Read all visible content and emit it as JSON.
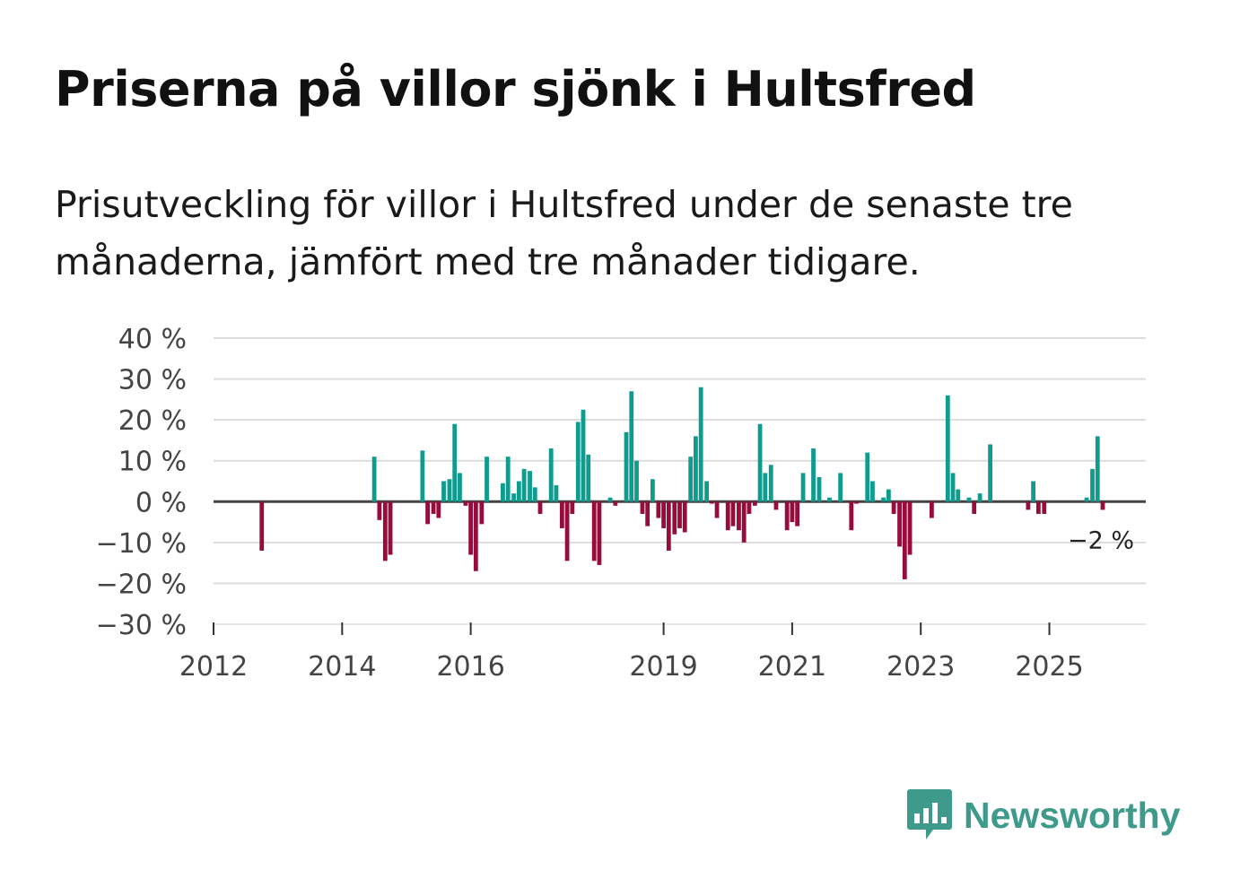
{
  "title": "Priserna på villor sjönk i Hultsfred",
  "subtitle": "Prisutveckling för villor i Hultsfred under de senaste tre månaderna, jämfört med tre månader tidigare.",
  "brand": "Newsworthy",
  "colors": {
    "positive": "#0f9b8e",
    "negative": "#960c3a",
    "brand": "#3e9a8b"
  },
  "chart_data": {
    "type": "bar",
    "title": "Priserna på villor sjönk i Hultsfred",
    "xlabel": "",
    "ylabel": "",
    "ylim": [
      -30,
      40
    ],
    "xlim": [
      2012,
      2026.5
    ],
    "yticks": [
      {
        "value": 40,
        "label": "40 %"
      },
      {
        "value": 30,
        "label": "30 %"
      },
      {
        "value": 20,
        "label": "20 %"
      },
      {
        "value": 10,
        "label": "10 %"
      },
      {
        "value": 0,
        "label": "0 %"
      },
      {
        "value": -10,
        "label": "−10 %"
      },
      {
        "value": -20,
        "label": "−20 %"
      },
      {
        "value": -30,
        "label": "−30 %"
      }
    ],
    "xticks": [
      {
        "value": 2012,
        "label": "2012"
      },
      {
        "value": 2014,
        "label": "2014"
      },
      {
        "value": 2016,
        "label": "2016"
      },
      {
        "value": 2019,
        "label": "2019"
      },
      {
        "value": 2021,
        "label": "2021"
      },
      {
        "value": 2023,
        "label": "2023"
      },
      {
        "value": 2025,
        "label": "2025"
      }
    ],
    "last_value_label": "−2 %",
    "series": [
      {
        "name": "Prisutveckling",
        "points": [
          {
            "x": 2012.75,
            "y": -12
          },
          {
            "x": 2014.5,
            "y": 11
          },
          {
            "x": 2014.58,
            "y": -4.5
          },
          {
            "x": 2014.67,
            "y": -14.5
          },
          {
            "x": 2014.75,
            "y": -13
          },
          {
            "x": 2015.25,
            "y": 12.5
          },
          {
            "x": 2015.33,
            "y": -5.5
          },
          {
            "x": 2015.42,
            "y": -3
          },
          {
            "x": 2015.5,
            "y": -4
          },
          {
            "x": 2015.58,
            "y": 5
          },
          {
            "x": 2015.67,
            "y": 5.5
          },
          {
            "x": 2015.75,
            "y": 19
          },
          {
            "x": 2015.83,
            "y": 7
          },
          {
            "x": 2015.92,
            "y": -1
          },
          {
            "x": 2016.0,
            "y": -13
          },
          {
            "x": 2016.08,
            "y": -17
          },
          {
            "x": 2016.17,
            "y": -5.5
          },
          {
            "x": 2016.25,
            "y": 11
          },
          {
            "x": 2016.5,
            "y": 4.5
          },
          {
            "x": 2016.58,
            "y": 11
          },
          {
            "x": 2016.67,
            "y": 2
          },
          {
            "x": 2016.75,
            "y": 5
          },
          {
            "x": 2016.83,
            "y": 8
          },
          {
            "x": 2016.92,
            "y": 7.5
          },
          {
            "x": 2017.0,
            "y": 3.5
          },
          {
            "x": 2017.08,
            "y": -3
          },
          {
            "x": 2017.25,
            "y": 13
          },
          {
            "x": 2017.33,
            "y": 4
          },
          {
            "x": 2017.42,
            "y": -6.5
          },
          {
            "x": 2017.5,
            "y": -14.5
          },
          {
            "x": 2017.58,
            "y": -3
          },
          {
            "x": 2017.67,
            "y": 19.5
          },
          {
            "x": 2017.75,
            "y": 22.5
          },
          {
            "x": 2017.83,
            "y": 11.5
          },
          {
            "x": 2017.92,
            "y": -14.5
          },
          {
            "x": 2018.0,
            "y": -15.5
          },
          {
            "x": 2018.17,
            "y": 1
          },
          {
            "x": 2018.25,
            "y": -1
          },
          {
            "x": 2018.42,
            "y": 17
          },
          {
            "x": 2018.5,
            "y": 27
          },
          {
            "x": 2018.58,
            "y": 10
          },
          {
            "x": 2018.67,
            "y": -3
          },
          {
            "x": 2018.75,
            "y": -6
          },
          {
            "x": 2018.83,
            "y": 5.5
          },
          {
            "x": 2018.92,
            "y": -4
          },
          {
            "x": 2019.0,
            "y": -6.5
          },
          {
            "x": 2019.08,
            "y": -12
          },
          {
            "x": 2019.17,
            "y": -8
          },
          {
            "x": 2019.25,
            "y": -6.5
          },
          {
            "x": 2019.33,
            "y": -7.5
          },
          {
            "x": 2019.42,
            "y": 11
          },
          {
            "x": 2019.5,
            "y": 16
          },
          {
            "x": 2019.58,
            "y": 28
          },
          {
            "x": 2019.67,
            "y": 5
          },
          {
            "x": 2019.75,
            "y": -0.5
          },
          {
            "x": 2019.83,
            "y": -4
          },
          {
            "x": 2020.0,
            "y": -7
          },
          {
            "x": 2020.08,
            "y": -6
          },
          {
            "x": 2020.17,
            "y": -7
          },
          {
            "x": 2020.25,
            "y": -10
          },
          {
            "x": 2020.33,
            "y": -3
          },
          {
            "x": 2020.42,
            "y": -1
          },
          {
            "x": 2020.5,
            "y": 19
          },
          {
            "x": 2020.58,
            "y": 7
          },
          {
            "x": 2020.67,
            "y": 9
          },
          {
            "x": 2020.75,
            "y": -2
          },
          {
            "x": 2020.92,
            "y": -7
          },
          {
            "x": 2021.0,
            "y": -5
          },
          {
            "x": 2021.08,
            "y": -6
          },
          {
            "x": 2021.17,
            "y": 7
          },
          {
            "x": 2021.33,
            "y": 13
          },
          {
            "x": 2021.42,
            "y": 6
          },
          {
            "x": 2021.58,
            "y": 1
          },
          {
            "x": 2021.75,
            "y": 7
          },
          {
            "x": 2021.92,
            "y": -7
          },
          {
            "x": 2022.0,
            "y": -0.5
          },
          {
            "x": 2022.17,
            "y": 12
          },
          {
            "x": 2022.25,
            "y": 5
          },
          {
            "x": 2022.42,
            "y": 1
          },
          {
            "x": 2022.5,
            "y": 3
          },
          {
            "x": 2022.58,
            "y": -3
          },
          {
            "x": 2022.67,
            "y": -11
          },
          {
            "x": 2022.75,
            "y": -19
          },
          {
            "x": 2022.83,
            "y": -13
          },
          {
            "x": 2023.17,
            "y": -4
          },
          {
            "x": 2023.42,
            "y": 26
          },
          {
            "x": 2023.5,
            "y": 7
          },
          {
            "x": 2023.58,
            "y": 3
          },
          {
            "x": 2023.75,
            "y": 1
          },
          {
            "x": 2023.83,
            "y": -3
          },
          {
            "x": 2023.92,
            "y": 2
          },
          {
            "x": 2024.08,
            "y": 14
          },
          {
            "x": 2024.67,
            "y": -2
          },
          {
            "x": 2024.75,
            "y": 5
          },
          {
            "x": 2024.83,
            "y": -3
          },
          {
            "x": 2024.92,
            "y": -3
          },
          {
            "x": 2025.58,
            "y": 1
          },
          {
            "x": 2025.67,
            "y": 8
          },
          {
            "x": 2025.75,
            "y": 16
          },
          {
            "x": 2025.83,
            "y": -2
          }
        ]
      }
    ]
  }
}
